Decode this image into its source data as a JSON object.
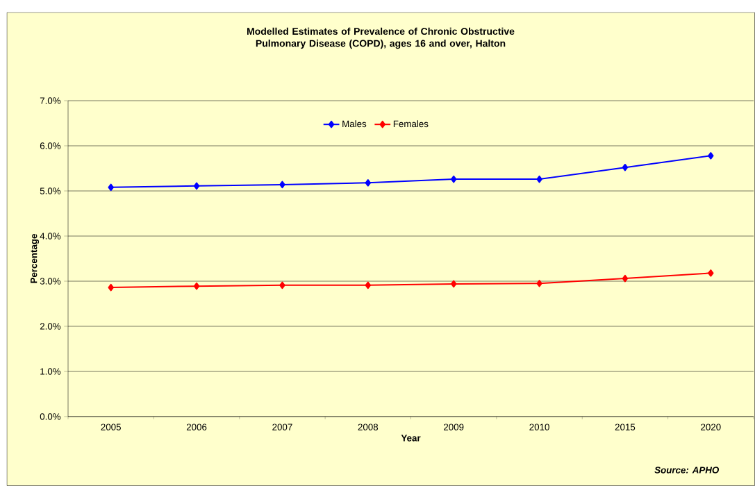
{
  "chart_data": {
    "type": "line",
    "title": "Modelled Estimates of Prevalence of Chronic Obstructive Pulmonary Disease (COPD), ages 16 and over, Halton",
    "xlabel": "Year",
    "ylabel": "Percentage",
    "categories": [
      "2005",
      "2006",
      "2007",
      "2008",
      "2009",
      "2010",
      "2015",
      "2020"
    ],
    "series": [
      {
        "name": "Males",
        "color": "#0000ff",
        "values": [
          5.08,
          5.11,
          5.14,
          5.18,
          5.26,
          5.26,
          5.52,
          5.78
        ]
      },
      {
        "name": "Females",
        "color": "#ff0000",
        "values": [
          2.86,
          2.89,
          2.91,
          2.91,
          2.94,
          2.95,
          3.06,
          3.18
        ]
      }
    ],
    "ylim": [
      0,
      7
    ],
    "yticks": [
      {
        "value": 0,
        "label": "0.0%"
      },
      {
        "value": 1,
        "label": "1.0%"
      },
      {
        "value": 2,
        "label": "2.0%"
      },
      {
        "value": 3,
        "label": "3.0%"
      },
      {
        "value": 4,
        "label": "4.0%"
      },
      {
        "value": 5,
        "label": "5.0%"
      },
      {
        "value": 6,
        "label": "6.0%"
      },
      {
        "value": 7,
        "label": "7.0%"
      }
    ],
    "grid": "y",
    "legend": "top",
    "marker": "diamond",
    "line_style": "solid",
    "annotations": [
      "Source: APHO"
    ]
  }
}
